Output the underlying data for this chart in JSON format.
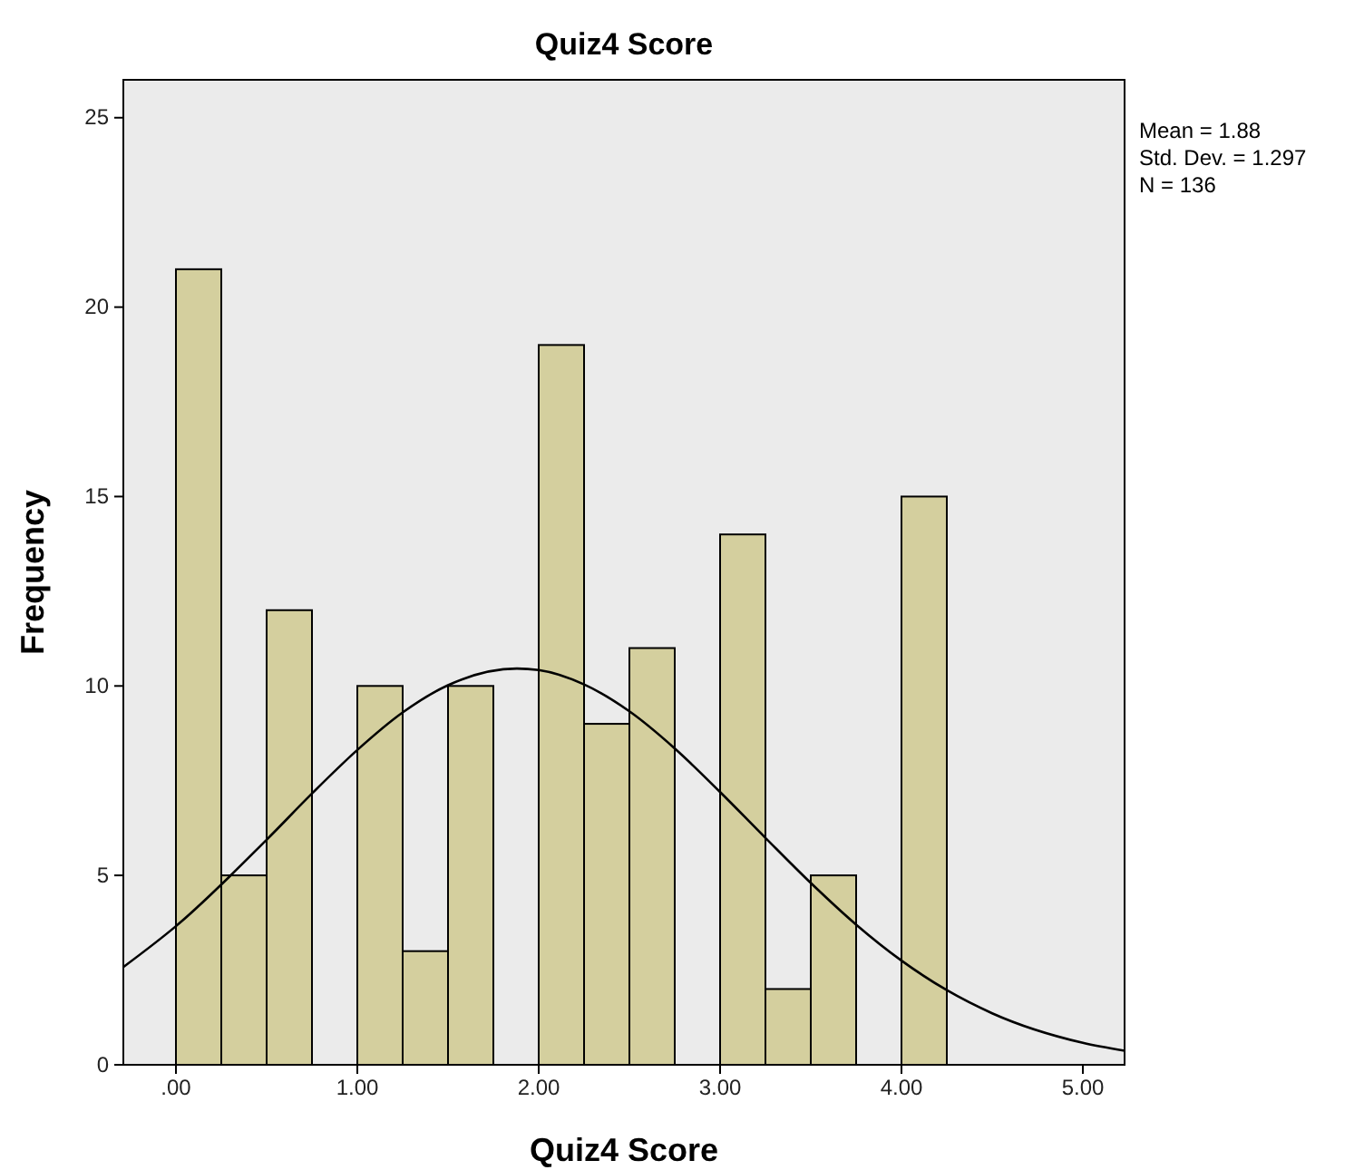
{
  "chart_data": {
    "type": "histogram",
    "title": "Quiz4 Score",
    "xlabel": "Quiz4 Score",
    "ylabel": "Frequency",
    "bins": [
      0,
      0.25,
      0.5,
      0.75,
      1,
      1.25,
      1.5,
      1.75,
      2,
      2.25,
      2.5,
      2.75,
      3,
      3.25,
      3.5,
      3.75,
      4,
      4.25
    ],
    "values": [
      21,
      5,
      12,
      0,
      10,
      3,
      10,
      0,
      19,
      9,
      11,
      0,
      14,
      2,
      5,
      0,
      15
    ],
    "color": "#d4cf9e",
    "series": [
      {
        "type": "line",
        "color": "#000000",
        "x": [
          -0.29,
          0,
          0.5,
          0.75,
          1,
          1.25,
          1.5,
          1.88,
          2,
          2.25,
          2.5,
          2.75,
          3,
          3.25,
          3.5,
          3.75,
          4,
          4.25,
          4.5,
          5,
          5.23
        ],
        "values": [
          2.58,
          3.66,
          5.94,
          7.16,
          8.31,
          9.3,
          10.02,
          10.46,
          10.42,
          10.04,
          9.33,
          8.35,
          7.2,
          5.99,
          4.8,
          3.7,
          2.75,
          1.97,
          1.36,
          0.58,
          0.37
        ]
      }
    ],
    "marker": "none",
    "line_style": "solid",
    "xlim": [
      -0.29,
      5.23
    ],
    "xticks": [
      {
        "value": 0,
        "label": ".00"
      },
      {
        "value": 1,
        "label": "1.00"
      },
      {
        "value": 2,
        "label": "2.00"
      },
      {
        "value": 3,
        "label": "3.00"
      },
      {
        "value": 4,
        "label": "4.00"
      },
      {
        "value": 5,
        "label": "5.00"
      }
    ],
    "ylim": [
      0,
      26
    ],
    "yticks": [
      0,
      5,
      10,
      15,
      20,
      25
    ],
    "grid": false,
    "annotations": [
      "Mean = 1.88",
      "Std. Dev. = 1.297",
      "N = 136"
    ]
  }
}
